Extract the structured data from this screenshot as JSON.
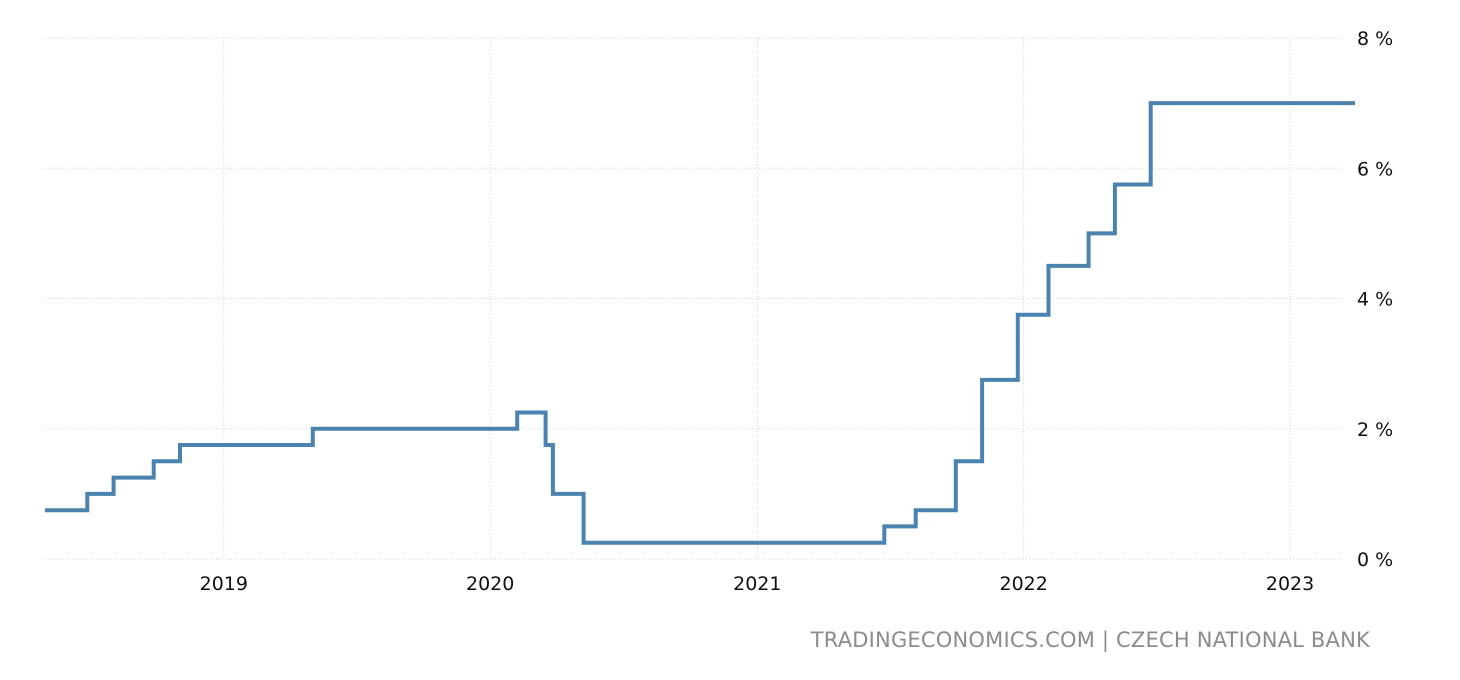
{
  "source": "TRADINGECONOMICS.COM | CZECH NATIONAL BANK",
  "chart_data": {
    "type": "line",
    "step": true,
    "title": "",
    "xlabel": "",
    "ylabel": "",
    "xlim": [
      "2018-05-01",
      "2023-03-31"
    ],
    "ylim": [
      0,
      8
    ],
    "yticks": [
      0,
      2,
      4,
      6,
      8
    ],
    "ytick_labels": [
      "0 %",
      "2 %",
      "4 %",
      "6 %",
      "8 %"
    ],
    "xticks": [
      "2019-01-01",
      "2020-01-01",
      "2021-01-01",
      "2022-01-01",
      "2023-01-01"
    ],
    "xtick_labels": [
      "2019",
      "2020",
      "2021",
      "2022",
      "2023"
    ],
    "grid": true,
    "y_axis_side": "right",
    "line_color": "#4a82b0",
    "series": [
      {
        "points": [
          [
            "2018-05-01",
            0.75
          ],
          [
            "2018-06-28",
            1.0
          ],
          [
            "2018-08-03",
            1.25
          ],
          [
            "2018-09-27",
            1.5
          ],
          [
            "2018-11-02",
            1.75
          ],
          [
            "2019-05-03",
            2.0
          ],
          [
            "2020-02-07",
            2.25
          ],
          [
            "2020-03-17",
            1.75
          ],
          [
            "2020-03-27",
            1.0
          ],
          [
            "2020-05-08",
            0.25
          ],
          [
            "2021-06-24",
            0.5
          ],
          [
            "2021-08-06",
            0.75
          ],
          [
            "2021-09-30",
            1.5
          ],
          [
            "2021-11-05",
            2.75
          ],
          [
            "2021-12-24",
            3.75
          ],
          [
            "2022-02-04",
            4.5
          ],
          [
            "2022-03-31",
            5.0
          ],
          [
            "2022-05-06",
            5.75
          ],
          [
            "2022-06-24",
            7.0
          ],
          [
            "2023-03-31",
            7.0
          ]
        ]
      }
    ]
  }
}
